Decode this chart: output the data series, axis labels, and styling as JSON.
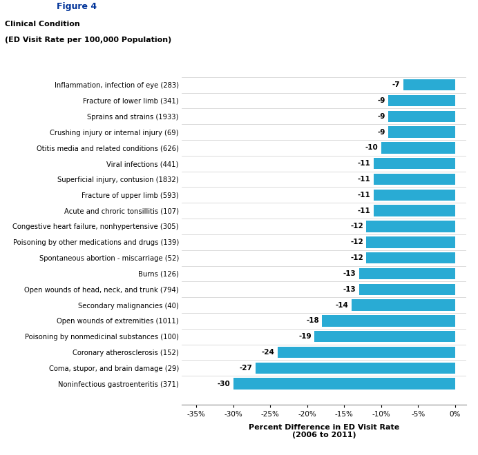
{
  "categories": [
    "Inflammation, infection of eye (283)",
    "Fracture of lower limb (341)",
    "Sprains and strains (1933)",
    "Crushing injury or internal injury (69)",
    "Otitis media and related conditions (626)",
    "Viral infections (441)",
    "Superficial injury, contusion (1832)",
    "Fracture of upper limb (593)",
    "Acute and chroric tonsillitis (107)",
    "Congestive heart failure, nonhypertensive (305)",
    "Poisoning by other medications and drugs (139)",
    "Spontaneous abortion - miscarriage (52)",
    "Burns (126)",
    "Open wounds of head, neck, and trunk (794)",
    "Secondary malignancies (40)",
    "Open wounds of extremities (1011)",
    "Poisoning by nonmedicinal substances (100)",
    "Coronary atherosclerosis (152)",
    "Coma, stupor, and brain damage (29)",
    "Noninfectious gastroenteritis (371)"
  ],
  "values": [
    -7,
    -9,
    -9,
    -9,
    -10,
    -11,
    -11,
    -11,
    -11,
    -12,
    -12,
    -12,
    -13,
    -13,
    -14,
    -18,
    -19,
    -24,
    -27,
    -30
  ],
  "bar_color": "#29ABD4",
  "label_color": "#000000",
  "background_color": "#ffffff",
  "xlabel": "Percent Difference in ED Visit Rate\n(2006 to 2011)",
  "ylabel_line1": "Clinical Condition",
  "ylabel_line2": "(ED Visit Rate per 100,000 Population)",
  "xlim": [
    -37,
    1.5
  ],
  "xtick_values": [
    -35,
    -30,
    -25,
    -20,
    -15,
    -10,
    -5,
    0
  ],
  "xtick_labels": [
    "-35%",
    "-30%",
    "-25%",
    "-20%",
    "-15%",
    "-10%",
    "-5%",
    "0%"
  ],
  "figure_title": "Figure 4"
}
